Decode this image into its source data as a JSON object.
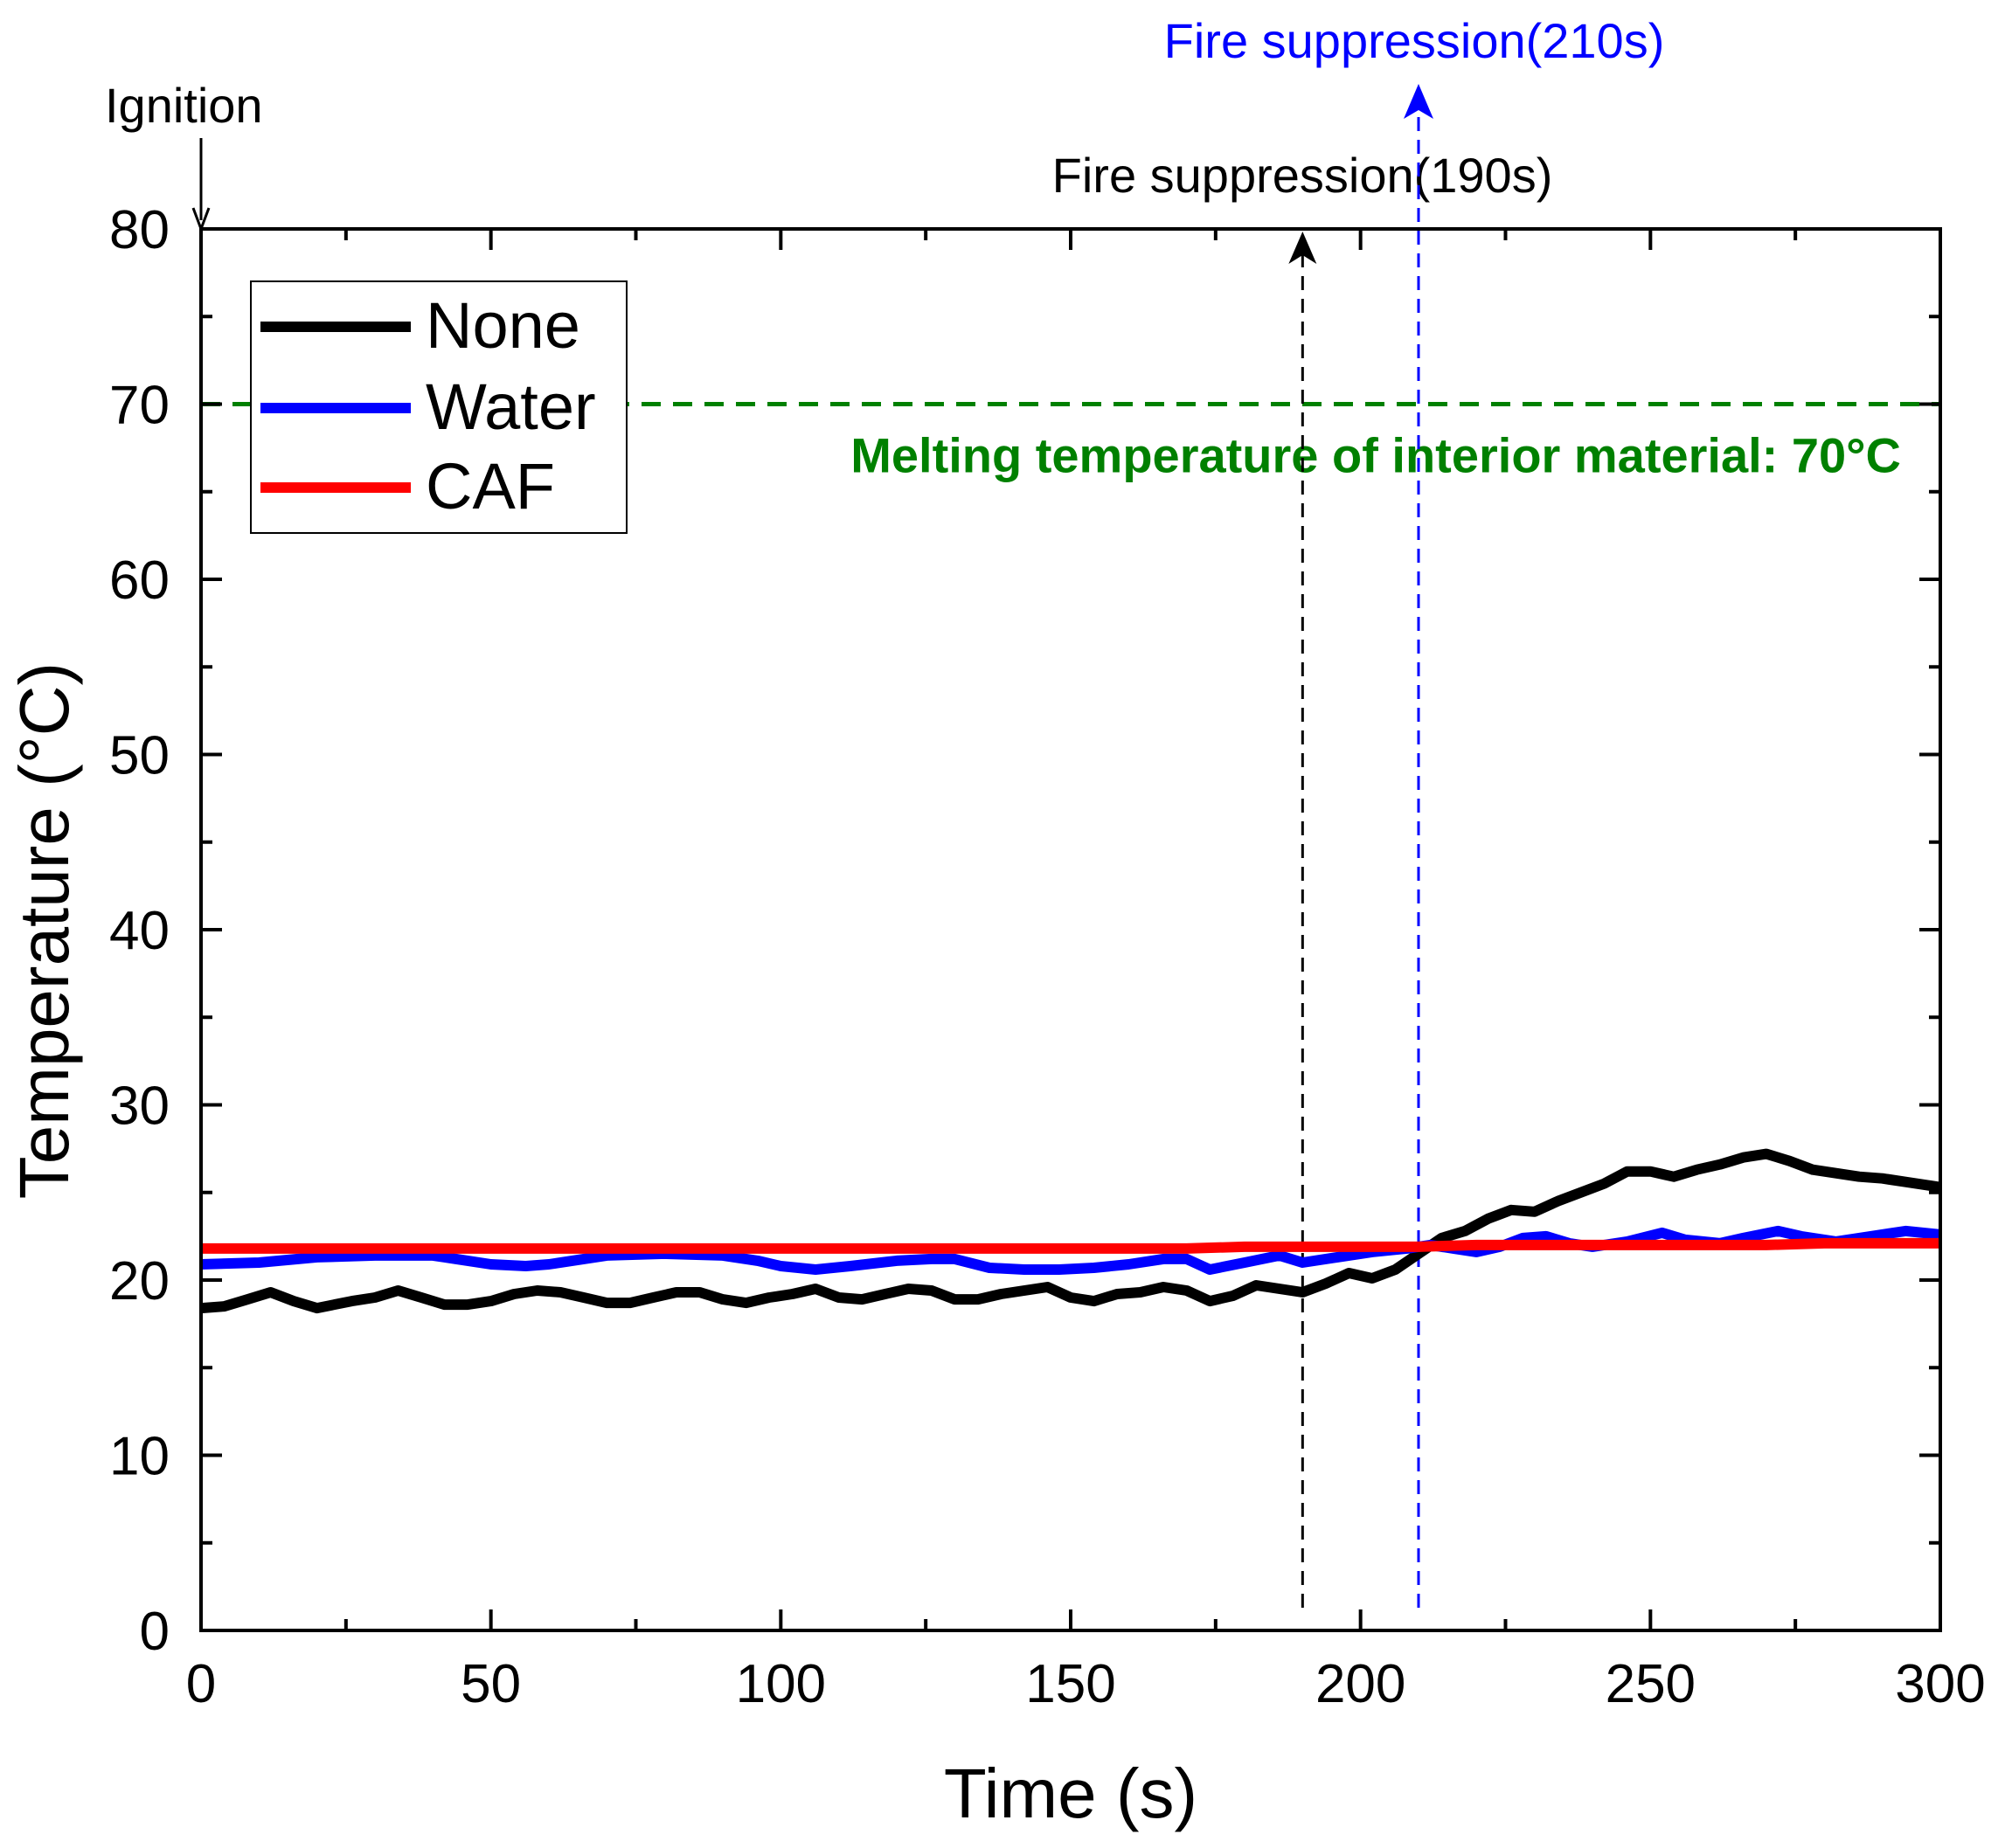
{
  "chart_data": {
    "type": "line",
    "xlabel": "Time (s)",
    "ylabel": "Temperature (°C)",
    "xlim": [
      0,
      300
    ],
    "ylim": [
      0,
      80
    ],
    "xticks": [
      0,
      50,
      100,
      150,
      200,
      250,
      300
    ],
    "yticks": [
      0,
      10,
      20,
      30,
      40,
      50,
      60,
      70,
      80
    ],
    "grid": false,
    "legend_position": "top-left",
    "series": [
      {
        "name": "None",
        "color": "#000000",
        "x": [
          0,
          4,
          8,
          12,
          16,
          20,
          26,
          30,
          34,
          38,
          42,
          46,
          50,
          54,
          58,
          62,
          66,
          70,
          74,
          78,
          82,
          86,
          90,
          94,
          98,
          102,
          106,
          110,
          114,
          118,
          122,
          126,
          130,
          134,
          138,
          142,
          146,
          150,
          154,
          158,
          162,
          166,
          170,
          174,
          178,
          182,
          186,
          190,
          194,
          198,
          202,
          206,
          210,
          214,
          218,
          222,
          226,
          230,
          234,
          238,
          242,
          246,
          250,
          254,
          258,
          262,
          266,
          270,
          274,
          278,
          282,
          286,
          290,
          294,
          300
        ],
        "values": [
          18.4,
          18.5,
          18.9,
          19.3,
          18.8,
          18.4,
          18.8,
          19.0,
          19.4,
          19.0,
          18.6,
          18.6,
          18.8,
          19.2,
          19.4,
          19.3,
          19.0,
          18.7,
          18.7,
          19.0,
          19.3,
          19.3,
          18.9,
          18.7,
          19.0,
          19.2,
          19.5,
          19.0,
          18.9,
          19.2,
          19.5,
          19.4,
          18.9,
          18.9,
          19.2,
          19.4,
          19.6,
          19.0,
          18.8,
          19.2,
          19.3,
          19.6,
          19.4,
          18.8,
          19.1,
          19.7,
          19.5,
          19.3,
          19.8,
          20.4,
          20.1,
          20.6,
          21.5,
          22.4,
          22.8,
          23.5,
          24.0,
          23.9,
          24.5,
          25.0,
          25.5,
          26.2,
          26.2,
          25.9,
          26.3,
          26.6,
          27.0,
          27.2,
          26.8,
          26.3,
          26.1,
          25.9,
          25.8,
          25.6,
          25.3
        ]
      },
      {
        "name": "Water",
        "color": "#0000ff",
        "x": [
          0,
          10,
          20,
          30,
          40,
          44,
          50,
          56,
          60,
          70,
          80,
          90,
          96,
          100,
          106,
          112,
          120,
          126,
          130,
          136,
          142,
          148,
          154,
          160,
          166,
          170,
          174,
          180,
          186,
          190,
          196,
          202,
          208,
          212,
          216,
          220,
          224,
          228,
          232,
          236,
          240,
          246,
          252,
          256,
          262,
          266,
          272,
          276,
          282,
          288,
          294,
          300
        ],
        "values": [
          20.9,
          21.0,
          21.3,
          21.4,
          21.4,
          21.2,
          20.9,
          20.8,
          20.9,
          21.4,
          21.5,
          21.4,
          21.1,
          20.8,
          20.6,
          20.8,
          21.1,
          21.2,
          21.2,
          20.7,
          20.6,
          20.6,
          20.7,
          20.9,
          21.2,
          21.2,
          20.6,
          21.0,
          21.4,
          21.0,
          21.3,
          21.6,
          21.8,
          22.0,
          21.8,
          21.6,
          21.9,
          22.4,
          22.5,
          22.1,
          21.9,
          22.2,
          22.7,
          22.3,
          22.1,
          22.4,
          22.8,
          22.5,
          22.2,
          22.5,
          22.8,
          22.6
        ]
      },
      {
        "name": "CAF",
        "color": "#ff0000",
        "x": [
          0,
          10,
          20,
          30,
          40,
          50,
          60,
          70,
          80,
          90,
          100,
          110,
          120,
          130,
          140,
          150,
          160,
          170,
          180,
          190,
          200,
          210,
          220,
          230,
          240,
          250,
          260,
          270,
          280,
          290,
          300
        ],
        "values": [
          21.8,
          21.8,
          21.8,
          21.8,
          21.8,
          21.8,
          21.8,
          21.8,
          21.8,
          21.8,
          21.8,
          21.8,
          21.8,
          21.8,
          21.8,
          21.8,
          21.8,
          21.8,
          21.9,
          21.9,
          21.9,
          21.9,
          22.0,
          22.0,
          22.0,
          22.0,
          22.0,
          22.0,
          22.1,
          22.1,
          22.1
        ]
      }
    ],
    "annotations": [
      {
        "id": "ignition",
        "text": "Ignition",
        "x": 0,
        "color": "#000000"
      },
      {
        "id": "fire-190",
        "text": "Fire suppression(190s)",
        "x": 190,
        "color": "#000000"
      },
      {
        "id": "fire-210",
        "text": "Fire suppression(210s)",
        "x": 210,
        "color": "#0000ff"
      },
      {
        "id": "melt",
        "text": "Melting temperature of interior material: 70°C",
        "y": 70,
        "color": "#008000"
      }
    ]
  }
}
